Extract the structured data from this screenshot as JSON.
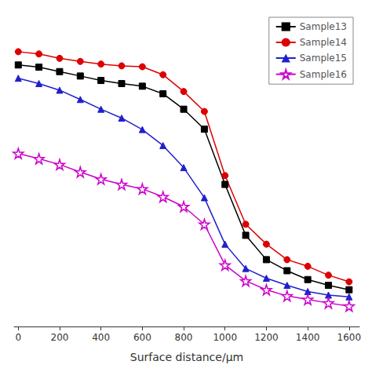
{
  "chart_data": {
    "type": "line",
    "xlabel": "Surface distance/μm",
    "xlim": [
      -20,
      1650
    ],
    "xticks": [
      0,
      200,
      400,
      600,
      800,
      1000,
      1200,
      1400,
      1600
    ],
    "ylim": [
      169,
      882
    ],
    "tick_labels": "x",
    "grid": false,
    "legend": "upper right",
    "series": [
      {
        "name": "Sample13",
        "color": "#000000",
        "marker": "square",
        "line_style": "solid",
        "x": [
          0,
          100,
          200,
          300,
          400,
          500,
          600,
          700,
          800,
          900,
          1000,
          1100,
          1200,
          1300,
          1400,
          1500,
          1600
        ],
        "values": [
          760,
          755,
          745,
          735,
          725,
          718,
          712,
          695,
          660,
          615,
          490,
          375,
          320,
          295,
          275,
          262,
          252
        ]
      },
      {
        "name": "Sample14",
        "color": "#dd0000",
        "marker": "circle",
        "line_style": "solid",
        "x": [
          0,
          100,
          200,
          300,
          400,
          500,
          600,
          700,
          800,
          900,
          1000,
          1100,
          1200,
          1300,
          1400,
          1500,
          1600
        ],
        "values": [
          790,
          785,
          775,
          768,
          762,
          758,
          756,
          738,
          700,
          655,
          510,
          400,
          355,
          320,
          305,
          285,
          270
        ]
      },
      {
        "name": "Sample15",
        "color": "#2020cc",
        "marker": "triangle",
        "line_style": "solid",
        "x": [
          0,
          100,
          200,
          300,
          400,
          500,
          600,
          700,
          800,
          900,
          1000,
          1100,
          1200,
          1300,
          1400,
          1500,
          1600
        ],
        "values": [
          730,
          718,
          703,
          682,
          660,
          640,
          614,
          578,
          528,
          460,
          355,
          300,
          278,
          262,
          248,
          240,
          236
        ]
      },
      {
        "name": "Sample16",
        "color": "#cc00cc",
        "marker": "open-star",
        "line_style": "solid",
        "x": [
          0,
          100,
          200,
          300,
          400,
          500,
          600,
          700,
          800,
          900,
          1000,
          1100,
          1200,
          1300,
          1400,
          1500,
          1600
        ],
        "values": [
          560,
          548,
          535,
          518,
          502,
          490,
          480,
          462,
          440,
          400,
          308,
          272,
          252,
          238,
          230,
          222,
          215
        ]
      }
    ]
  }
}
